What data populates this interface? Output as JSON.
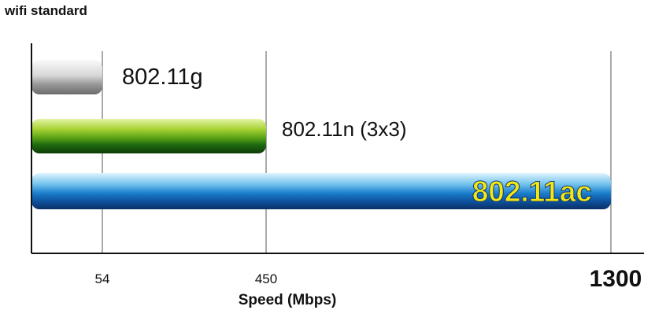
{
  "chart_data": {
    "type": "bar",
    "orientation": "horizontal",
    "title": "wifi standard",
    "xlabel": "Speed (Mbps)",
    "ylabel": "",
    "categories": [
      "802.11g",
      "802.11n (3x3)",
      "802.11ac"
    ],
    "values": [
      54,
      450,
      1300
    ],
    "xticks": [
      54,
      450,
      1300
    ],
    "xlim": [
      0,
      1300
    ],
    "grid": true,
    "bar_colors": [
      "#b8b8b8",
      "#7cbf1e",
      "#1f78c8"
    ],
    "label_colors": [
      "#111111",
      "#111111",
      "#f5e611"
    ]
  }
}
